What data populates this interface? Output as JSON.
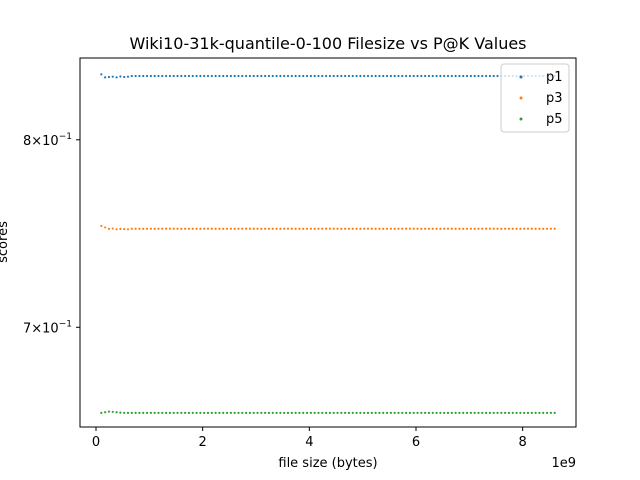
{
  "chart_data": {
    "type": "scatter",
    "title": "Wiki10-31k-quantile-0-100 Filesize vs P@K Values",
    "xlabel": "file size (bytes)",
    "ylabel": "scores",
    "x_offset_label": "1e9",
    "xlim": [
      -0.3,
      9.0
    ],
    "xscale_factor": 1000000000,
    "ylim": [
      0.652,
      0.848
    ],
    "yscale": "log",
    "x_ticks": [
      0,
      2,
      4,
      6,
      8
    ],
    "x_tick_labels": [
      "0",
      "2",
      "4",
      "6",
      "8"
    ],
    "y_ticks": [
      0.7,
      0.8
    ],
    "y_tick_labels": [
      {
        "base": "7",
        "exp": "−1"
      },
      {
        "base": "8",
        "exp": "−1"
      }
    ],
    "legend_position": "top-right",
    "series": [
      {
        "name": "p1",
        "color": "#1f77b4",
        "x_range": [
          0.1,
          8.6
        ],
        "n_points": 120,
        "start_values": [
          0.8382,
          0.8364,
          0.8366,
          0.8368,
          0.8364,
          0.8369,
          0.8366,
          0.8368
        ],
        "plateau": 0.8372
      },
      {
        "name": "p3",
        "color": "#ff7f0e",
        "x_range": [
          0.1,
          8.6
        ],
        "n_points": 120,
        "start_values": [
          0.7524,
          0.7516,
          0.7508,
          0.751,
          0.7506,
          0.7508,
          0.7507,
          0.7506
        ],
        "plateau": 0.7509
      },
      {
        "name": "p5",
        "color": "#2ca02c",
        "x_range": [
          0.1,
          8.6
        ],
        "n_points": 120,
        "start_values": [
          0.6586,
          0.6589,
          0.6592,
          0.6591,
          0.6589,
          0.6587,
          0.6586,
          0.6586
        ],
        "plateau": 0.6586
      }
    ]
  }
}
